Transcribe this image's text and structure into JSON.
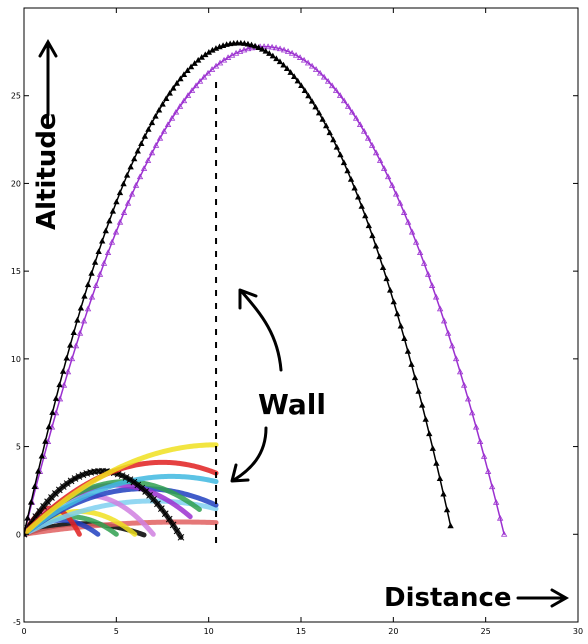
{
  "chart_data": {
    "type": "line",
    "xlim": [
      0,
      30
    ],
    "ylim": [
      -5,
      30
    ],
    "x_ticks": [
      0,
      5,
      10,
      15,
      20,
      25,
      30
    ],
    "y_ticks": [
      -5,
      0,
      5,
      10,
      15,
      20,
      25
    ],
    "x_tick_labels": [
      "0",
      "5",
      "10",
      "15",
      "20",
      "25",
      "30"
    ],
    "y_tick_labels": [
      "-5",
      "0",
      "5",
      "10",
      "15",
      "20",
      "25"
    ],
    "grid": false,
    "xlabel": "Distance",
    "ylabel": "Altitude",
    "annotation": "Wall",
    "wall": {
      "x": 10.4,
      "y_range": [
        -0.5,
        26
      ]
    },
    "series": [
      {
        "color": "#000000",
        "marker": "triangle",
        "x_range": [
          0,
          23.1
        ],
        "apex": [
          11.6,
          28.0
        ]
      },
      {
        "color": "#9b30d0",
        "marker": "triangle-open",
        "x_range": [
          0,
          26.0
        ],
        "apex": [
          13.0,
          27.8
        ]
      },
      {
        "color": "#f0e020",
        "x_range": [
          0,
          10.4
        ],
        "apex": [
          10.4,
          5.1
        ]
      },
      {
        "color": "#e02020",
        "x_range": [
          0,
          10.4
        ],
        "apex": [
          7.5,
          4.1
        ]
      },
      {
        "color": "#000000",
        "marker": "cross",
        "x_range": [
          0,
          8.5
        ],
        "apex": [
          4.2,
          3.6
        ]
      },
      {
        "color": "#3fb8e0",
        "x_range": [
          0,
          10.4
        ],
        "apex": [
          8.0,
          3.3
        ]
      },
      {
        "color": "#30a050",
        "x_range": [
          0,
          9.5
        ],
        "apex": [
          5.5,
          3.0
        ]
      },
      {
        "color": "#2040c0",
        "x_range": [
          0,
          10.4
        ],
        "apex": [
          6.5,
          2.6
        ]
      },
      {
        "color": "#d080e0",
        "x_range": [
          0,
          7.0
        ],
        "apex": [
          3.5,
          2.2
        ]
      },
      {
        "color": "#e02020",
        "x_range": [
          0,
          3.0
        ],
        "apex": [
          1.5,
          1.5
        ]
      },
      {
        "color": "#7fd0f0",
        "x_range": [
          0,
          10.4
        ],
        "apex": [
          7.0,
          1.9
        ]
      },
      {
        "color": "#f0e020",
        "x_range": [
          0,
          6.0
        ],
        "apex": [
          3.0,
          1.3
        ]
      },
      {
        "color": "#30a050",
        "x_range": [
          0,
          5.0
        ],
        "apex": [
          2.5,
          1.0
        ]
      },
      {
        "color": "#2040c0",
        "x_range": [
          0,
          4.0
        ],
        "apex": [
          2.0,
          0.8
        ]
      },
      {
        "color": "#e06060",
        "x_range": [
          0,
          10.4
        ],
        "apex": [
          8.5,
          0.7
        ]
      },
      {
        "color": "#000000",
        "x_range": [
          0,
          6.5
        ],
        "apex": [
          3.2,
          0.6
        ]
      },
      {
        "color": "#9b30d0",
        "x_range": [
          0,
          9.0
        ],
        "apex": [
          5.0,
          2.8
        ]
      }
    ]
  }
}
